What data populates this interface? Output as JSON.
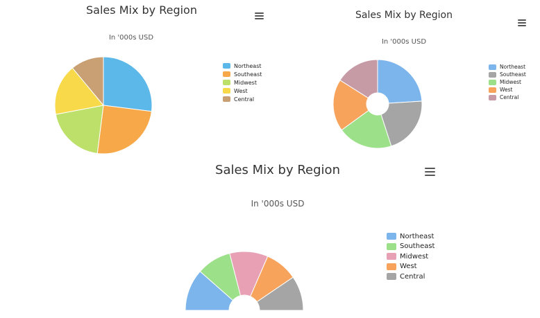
{
  "chart_data": [
    {
      "type": "pie",
      "variant": "pie",
      "title": "Sales Mix by Region",
      "subtitle": "In '000s USD",
      "categories": [
        "Northeast",
        "Southeast",
        "Midwest",
        "West",
        "Central"
      ],
      "values": [
        27,
        25,
        20,
        17,
        11
      ],
      "colors": [
        "#5cb8e8",
        "#f7a94a",
        "#bde06a",
        "#f7d94a",
        "#c8a073"
      ],
      "legend_position": "right",
      "menu_icon": "hamburger-menu-icon"
    },
    {
      "type": "pie",
      "variant": "donut",
      "title": "Sales Mix by Region",
      "subtitle": "In '000s USD",
      "categories": [
        "Northeast",
        "Southeast",
        "Midwest",
        "West",
        "Central"
      ],
      "values": [
        24,
        21,
        20,
        19,
        16
      ],
      "colors": [
        "#7cb5ec",
        "#a5a5a5",
        "#9de08a",
        "#f7a35c",
        "#c79ba6"
      ],
      "legend_position": "right",
      "menu_icon": "hamburger-menu-icon"
    },
    {
      "type": "pie",
      "variant": "semi-donut",
      "title": "Sales Mix by Region",
      "subtitle": "In '000s USD",
      "categories": [
        "Northeast",
        "Southeast",
        "Midwest",
        "West",
        "Central"
      ],
      "values": [
        23,
        19,
        21,
        18,
        19
      ],
      "colors": [
        "#7cb5ec",
        "#9de08a",
        "#e8a0b4",
        "#f7a35c",
        "#a5a5a5"
      ],
      "legend_position": "right",
      "menu_icon": "hamburger-menu-icon"
    }
  ]
}
